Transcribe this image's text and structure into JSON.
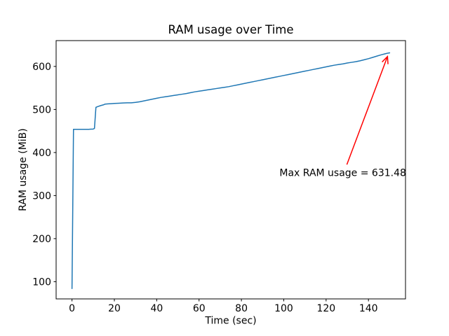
{
  "chart_data": {
    "type": "line",
    "title": "RAM usage over Time",
    "xlabel": "Time (sec)",
    "ylabel": "RAM usage (MiB)",
    "line_color": "#1f77b4",
    "annotation_color": "#ff0000",
    "background_color": "#ffffff",
    "grid": false,
    "legend": "none",
    "xlim": [
      -7.5,
      157.5
    ],
    "ylim": [
      60,
      660
    ],
    "xticks": [
      0,
      20,
      40,
      60,
      80,
      100,
      120,
      140
    ],
    "yticks": [
      100,
      200,
      300,
      400,
      500,
      600
    ],
    "series": [
      {
        "name": "RAM usage",
        "x": [
          0,
          0.7,
          2,
          4,
          6,
          8,
          10,
          10.6,
          11.3,
          12,
          13.5,
          15,
          15.6,
          17,
          18.5,
          20,
          22,
          24,
          26,
          28,
          30,
          32,
          34,
          36,
          38,
          40,
          42,
          44,
          46,
          48,
          50,
          52,
          54,
          56,
          58,
          60,
          62,
          64,
          66,
          68,
          70,
          72,
          74,
          76,
          78,
          80,
          82,
          84,
          86,
          88,
          90,
          92,
          94,
          96,
          98,
          100,
          102,
          104,
          106,
          108,
          110,
          112,
          114,
          116,
          118,
          120,
          122,
          124,
          126,
          128,
          130,
          132,
          134,
          136,
          138,
          140,
          142,
          144,
          146,
          148,
          149.3,
          150
        ],
        "y": [
          84,
          454,
          454,
          454,
          454,
          454,
          454.5,
          456,
          505,
          506.5,
          509,
          511,
          512.5,
          513,
          513.5,
          514,
          514.5,
          515,
          515.5,
          515.5,
          516.5,
          518,
          520,
          522,
          524,
          526,
          528,
          529.5,
          531,
          532.5,
          534,
          535.5,
          537,
          539,
          541,
          542.5,
          544,
          545.5,
          547,
          548.5,
          550,
          551.5,
          553,
          555,
          557,
          559,
          561,
          563,
          565,
          567,
          569,
          571,
          573,
          575,
          577,
          579,
          581,
          583,
          585,
          587,
          589,
          591,
          593,
          595,
          597,
          599,
          601,
          603,
          604.5,
          606,
          608,
          609.5,
          611,
          613,
          615.5,
          618,
          621,
          624,
          627,
          629.5,
          631,
          631.48
        ]
      }
    ],
    "max_ram_mib": 631.48,
    "annotation": {
      "text": "Max RAM usage = 631.48",
      "text_xy": [
        98,
        345
      ],
      "arrow_tail_xy": [
        129.8,
        372
      ],
      "arrow_tip_xy": [
        149,
        623
      ]
    }
  }
}
